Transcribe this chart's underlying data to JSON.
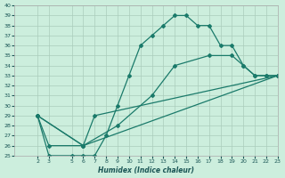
{
  "xlabel": "Humidex (Indice chaleur)",
  "bg_color": "#cceedd",
  "grid_color": "#aaccbb",
  "line_color": "#1a7a6a",
  "xlim": [
    0,
    23
  ],
  "ylim": [
    25,
    40
  ],
  "yticks": [
    25,
    26,
    27,
    28,
    29,
    30,
    31,
    32,
    33,
    34,
    35,
    36,
    37,
    38,
    39,
    40
  ],
  "xticks": [
    2,
    3,
    5,
    6,
    7,
    8,
    9,
    10,
    11,
    12,
    13,
    14,
    15,
    16,
    17,
    18,
    19,
    20,
    21,
    22,
    23
  ],
  "line1_x": [
    2,
    3,
    5,
    6,
    7,
    8,
    9,
    10,
    11,
    12,
    13,
    14,
    15,
    16,
    17,
    18,
    19,
    20,
    21,
    22,
    23
  ],
  "line1_y": [
    29,
    25,
    25,
    25,
    25,
    27,
    30,
    33,
    36,
    37,
    38,
    39,
    39,
    38,
    38,
    36,
    36,
    34,
    33,
    33,
    33
  ],
  "line2_x": [
    2,
    3,
    6,
    7,
    23
  ],
  "line2_y": [
    29,
    26,
    26,
    29,
    33
  ],
  "line3_x": [
    2,
    6,
    9,
    12,
    14,
    17,
    19,
    20,
    21,
    22,
    23
  ],
  "line3_y": [
    29,
    26,
    28,
    31,
    34,
    35,
    35,
    34,
    33,
    33,
    33
  ],
  "line4_x": [
    2,
    6,
    23
  ],
  "line4_y": [
    29,
    26,
    33
  ]
}
